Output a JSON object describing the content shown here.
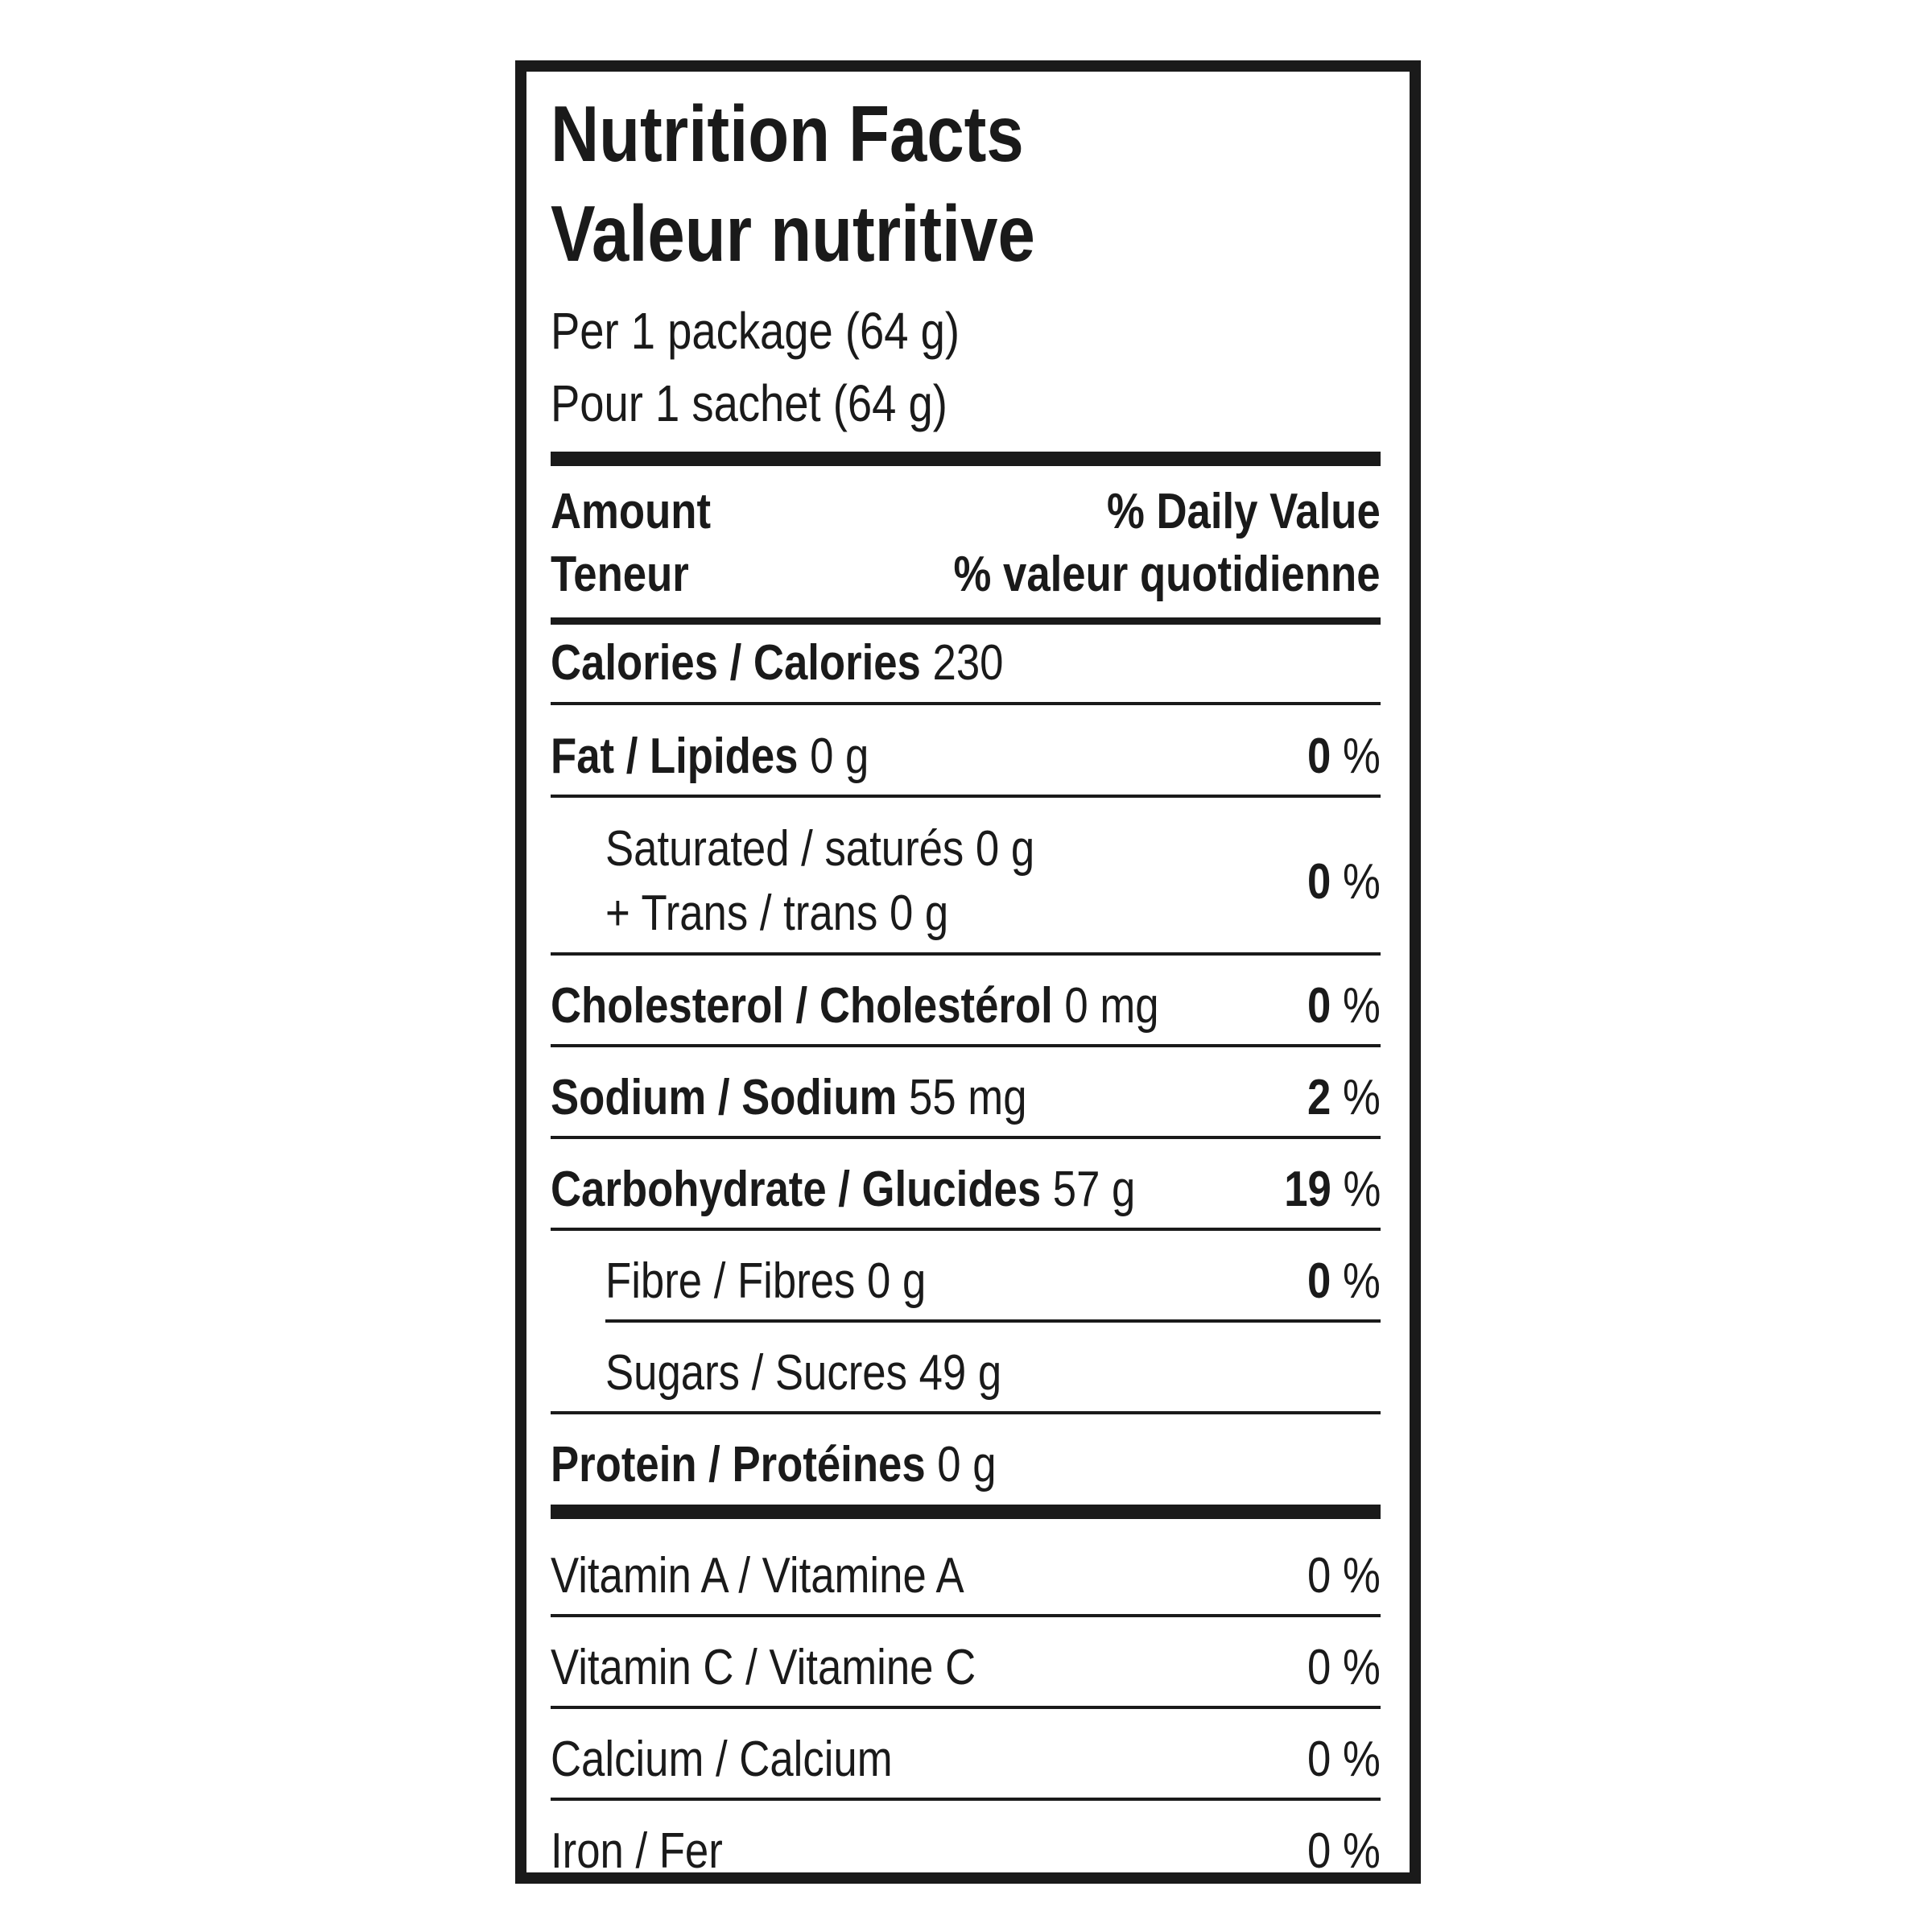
{
  "title_en": "Nutrition Facts",
  "title_fr": "Valeur nutritive",
  "serving_en": "Per 1 package (64 g)",
  "serving_fr": "Pour 1 sachet (64 g)",
  "header": {
    "amount_en": "Amount",
    "amount_fr": "Teneur",
    "dv_en": "% Daily Value",
    "dv_fr": "% valeur quotidienne"
  },
  "calories": {
    "label": "Calories / Calories",
    "value": "230"
  },
  "nutrients": {
    "fat": {
      "label": "Fat / Lipides",
      "amount": "0 g",
      "pct_num": "0",
      "pct_sign": "%"
    },
    "saturated": {
      "label": "Saturated / saturés 0 g",
      "label2": "+ Trans / trans 0 g",
      "pct_num": "0",
      "pct_sign": "%"
    },
    "cholesterol": {
      "label": "Cholesterol / Cholestérol",
      "amount": "0 mg",
      "pct_num": "0",
      "pct_sign": "%"
    },
    "sodium": {
      "label": "Sodium / Sodium",
      "amount": "55 mg",
      "pct_num": "2",
      "pct_sign": "%"
    },
    "carbohydrate": {
      "label": "Carbohydrate / Glucides",
      "amount": "57 g",
      "pct_num": "19",
      "pct_sign": "%"
    },
    "fibre": {
      "label": "Fibre / Fibres 0 g",
      "pct_num": "0",
      "pct_sign": "%"
    },
    "sugars": {
      "label": "Sugars / Sucres 49 g"
    },
    "protein": {
      "label": "Protein / Protéines",
      "amount": "0 g"
    }
  },
  "vitamins": {
    "vitamin_a": {
      "label": "Vitamin A / Vitamine A",
      "pct": "0 %"
    },
    "vitamin_c": {
      "label": "Vitamin C / Vitamine C",
      "pct": "0 %"
    },
    "calcium": {
      "label": "Calcium / Calcium",
      "pct": "0 %"
    },
    "iron": {
      "label": "Iron / Fer",
      "pct": "0 %"
    }
  },
  "colors": {
    "ink": "#1a1a1a",
    "background": "#ffffff"
  }
}
